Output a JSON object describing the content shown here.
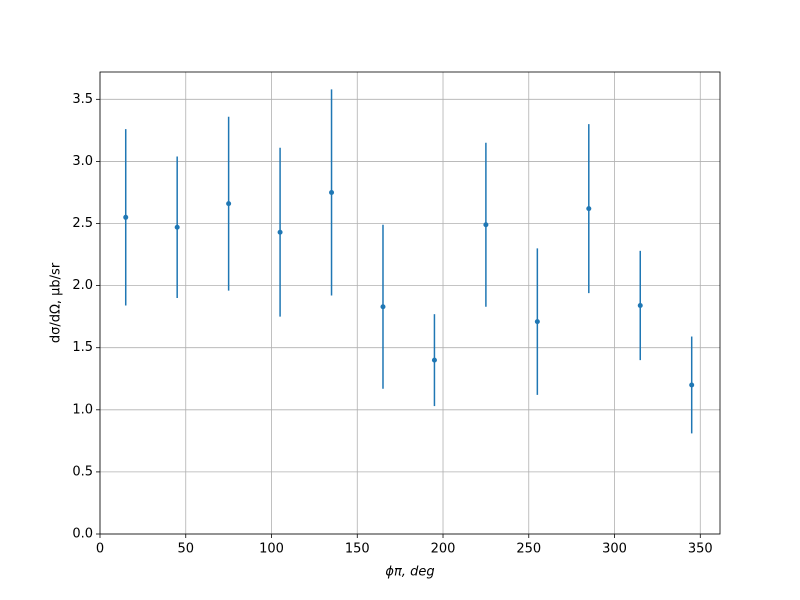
{
  "chart_data": {
    "type": "errorbar",
    "x_label": "ϕπ, deg",
    "y_label": "dσ/dΩ, μb/sr",
    "series": [
      {
        "color": "#1f77b4",
        "x": [
          15,
          45,
          75,
          105,
          135,
          165,
          195,
          225,
          255,
          285,
          315,
          345
        ],
        "values": [
          2.55,
          2.47,
          2.66,
          2.43,
          2.75,
          1.83,
          1.4,
          2.49,
          1.71,
          2.62,
          1.84,
          1.2
        ],
        "errors": [
          0.71,
          0.57,
          0.7,
          0.68,
          0.83,
          0.66,
          0.37,
          0.66,
          0.59,
          0.68,
          0.44,
          0.39
        ]
      }
    ],
    "xlim": [
      0,
      361.5
    ],
    "ylim": [
      0,
      3.72
    ],
    "xticks": [
      0,
      50,
      100,
      150,
      200,
      250,
      300,
      350
    ],
    "yticks": [
      {
        "value": 0,
        "label": "0.0"
      },
      0.5,
      {
        "value": 1,
        "label": "1.0"
      },
      1.5,
      {
        "value": 2,
        "label": "2.0"
      },
      2.5,
      {
        "value": 3,
        "label": "3.0"
      },
      3.5
    ],
    "grid": true
  }
}
